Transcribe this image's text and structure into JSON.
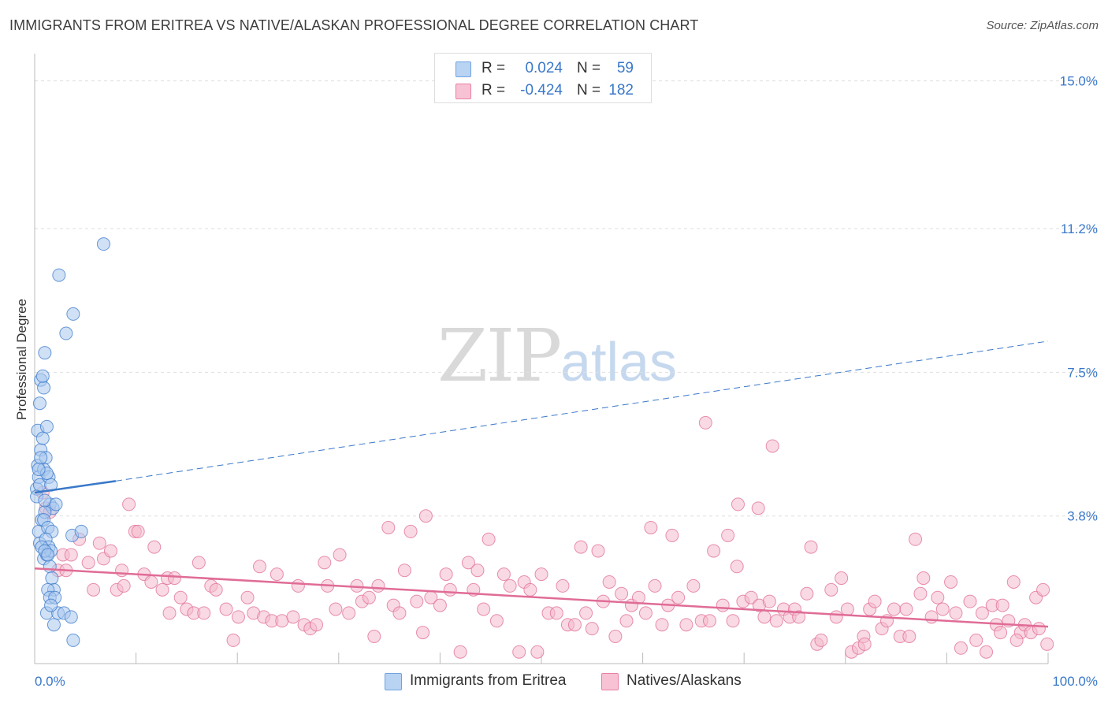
{
  "header": {
    "title": "IMMIGRANTS FROM ERITREA VS NATIVE/ALASKAN PROFESSIONAL DEGREE CORRELATION CHART",
    "source": "Source: ZipAtlas.com"
  },
  "watermark": {
    "zip": "ZIP",
    "atlas": "atlas"
  },
  "stats": [
    {
      "r_label": "R =",
      "r_value": "0.024",
      "n_label": "N =",
      "n_value": "59",
      "color": "#6fa3e0",
      "fill": "#b9d3f3"
    },
    {
      "r_label": "R =",
      "r_value": "-0.424",
      "n_label": "N =",
      "n_value": "182",
      "color": "#e87fa3",
      "fill": "#f7c3d4"
    }
  ],
  "legend": [
    {
      "label": "Immigrants from Eritrea",
      "fill": "#b9d3f3",
      "stroke": "#6fa3e0"
    },
    {
      "label": "Natives/Alaskans",
      "fill": "#f7c3d4",
      "stroke": "#e87fa3"
    }
  ],
  "colors": {
    "blue": "#3a78c9",
    "blue_fill": "#a9c8ef",
    "pink": "#e06c96",
    "pink_fill": "#f4b9cc",
    "grid": "#dedede",
    "tick_text": "#3a78c9"
  },
  "chart_data": {
    "type": "scatter",
    "title": "IMMIGRANTS FROM ERITREA VS NATIVE/ALASKAN PROFESSIONAL DEGREE CORRELATION CHART",
    "xlabel": "",
    "ylabel": "Professional Degree",
    "xlim": [
      0,
      100
    ],
    "ylim": [
      0,
      15.5
    ],
    "x_tick_labels": [
      "0.0%",
      "100.0%"
    ],
    "y_ticks": [
      3.8,
      7.5,
      11.2,
      15.0
    ],
    "y_tick_labels": [
      "3.8%",
      "7.5%",
      "11.2%",
      "15.0%"
    ],
    "series": [
      {
        "name": "Immigrants from Eritrea",
        "trend": {
          "x0": 0,
          "y0": 4.4,
          "x1": 8,
          "y1": 4.7,
          "dash_x1": 100,
          "dash_y1": 8.3
        },
        "points": [
          [
            0.2,
            4.5
          ],
          [
            0.3,
            5.1
          ],
          [
            0.4,
            4.8
          ],
          [
            0.5,
            4.6
          ],
          [
            0.2,
            4.3
          ],
          [
            0.6,
            5.5
          ],
          [
            0.4,
            3.4
          ],
          [
            0.5,
            3.1
          ],
          [
            0.7,
            3.7
          ],
          [
            0.3,
            6.0
          ],
          [
            0.5,
            6.7
          ],
          [
            0.6,
            7.3
          ],
          [
            0.9,
            7.1
          ],
          [
            1.0,
            8.0
          ],
          [
            0.8,
            5.8
          ],
          [
            1.2,
            6.1
          ],
          [
            1.1,
            5.3
          ],
          [
            0.9,
            5.0
          ],
          [
            1.4,
            4.8
          ],
          [
            1.6,
            4.6
          ],
          [
            1.2,
            4.9
          ],
          [
            1.5,
            4.1
          ],
          [
            1.8,
            4.0
          ],
          [
            1.0,
            3.9
          ],
          [
            0.9,
            3.7
          ],
          [
            1.3,
            3.5
          ],
          [
            1.7,
            3.4
          ],
          [
            1.1,
            3.2
          ],
          [
            1.4,
            3.0
          ],
          [
            0.9,
            2.7
          ],
          [
            1.2,
            2.8
          ],
          [
            1.6,
            2.9
          ],
          [
            1.5,
            2.5
          ],
          [
            1.7,
            2.2
          ],
          [
            1.9,
            1.9
          ],
          [
            1.3,
            1.9
          ],
          [
            1.5,
            1.7
          ],
          [
            2.0,
            1.7
          ],
          [
            1.2,
            1.3
          ],
          [
            1.9,
            1.0
          ],
          [
            2.3,
            1.3
          ],
          [
            2.9,
            1.3
          ],
          [
            3.6,
            1.2
          ],
          [
            3.7,
            3.3
          ],
          [
            4.6,
            3.4
          ],
          [
            3.8,
            9.0
          ],
          [
            2.4,
            10.0
          ],
          [
            6.8,
            10.8
          ],
          [
            3.1,
            8.5
          ],
          [
            0.8,
            7.4
          ],
          [
            0.6,
            5.3
          ],
          [
            0.4,
            5.0
          ],
          [
            1.0,
            4.2
          ],
          [
            2.1,
            4.1
          ],
          [
            0.7,
            3.0
          ],
          [
            1.0,
            2.9
          ],
          [
            1.3,
            2.8
          ],
          [
            1.6,
            1.5
          ],
          [
            3.8,
            0.6
          ]
        ]
      },
      {
        "name": "Natives/Alaskans",
        "trend": {
          "x0": 0,
          "y0": 2.45,
          "x1": 100,
          "y1": 0.95
        },
        "points": [
          [
            0.8,
            4.4
          ],
          [
            1.1,
            4.0
          ],
          [
            1.5,
            3.9
          ],
          [
            2.3,
            2.4
          ],
          [
            2.8,
            2.8
          ],
          [
            3.1,
            2.4
          ],
          [
            3.6,
            2.8
          ],
          [
            4.4,
            3.2
          ],
          [
            5.3,
            2.6
          ],
          [
            5.8,
            1.9
          ],
          [
            6.4,
            3.1
          ],
          [
            6.8,
            2.7
          ],
          [
            7.5,
            2.9
          ],
          [
            8.1,
            1.9
          ],
          [
            8.8,
            2.0
          ],
          [
            8.6,
            2.4
          ],
          [
            9.3,
            4.1
          ],
          [
            9.9,
            3.4
          ],
          [
            10.2,
            3.4
          ],
          [
            10.8,
            2.3
          ],
          [
            11.5,
            2.1
          ],
          [
            11.8,
            3.0
          ],
          [
            12.6,
            1.9
          ],
          [
            13.1,
            2.2
          ],
          [
            13.3,
            1.3
          ],
          [
            13.8,
            2.2
          ],
          [
            14.4,
            1.7
          ],
          [
            15.0,
            1.4
          ],
          [
            15.7,
            1.3
          ],
          [
            16.2,
            2.6
          ],
          [
            16.7,
            1.3
          ],
          [
            17.4,
            2.0
          ],
          [
            17.9,
            1.9
          ],
          [
            18.9,
            1.4
          ],
          [
            19.6,
            0.6
          ],
          [
            20.1,
            1.2
          ],
          [
            21.0,
            1.7
          ],
          [
            21.6,
            1.3
          ],
          [
            22.2,
            2.5
          ],
          [
            22.6,
            1.2
          ],
          [
            23.4,
            1.1
          ],
          [
            23.9,
            2.3
          ],
          [
            24.4,
            1.1
          ],
          [
            25.5,
            1.2
          ],
          [
            26.0,
            2.0
          ],
          [
            26.6,
            1.0
          ],
          [
            27.2,
            0.9
          ],
          [
            27.8,
            1.0
          ],
          [
            28.6,
            2.6
          ],
          [
            28.9,
            2.0
          ],
          [
            29.7,
            1.4
          ],
          [
            30.1,
            2.8
          ],
          [
            31.0,
            1.3
          ],
          [
            31.8,
            2.0
          ],
          [
            32.3,
            1.6
          ],
          [
            33.0,
            1.7
          ],
          [
            33.5,
            0.7
          ],
          [
            33.9,
            2.0
          ],
          [
            34.9,
            3.5
          ],
          [
            35.4,
            1.5
          ],
          [
            36.0,
            1.3
          ],
          [
            36.5,
            2.4
          ],
          [
            37.1,
            3.4
          ],
          [
            37.7,
            1.6
          ],
          [
            38.3,
            0.8
          ],
          [
            38.6,
            3.8
          ],
          [
            39.1,
            1.7
          ],
          [
            40.0,
            1.5
          ],
          [
            40.6,
            2.3
          ],
          [
            41.0,
            1.9
          ],
          [
            42.0,
            0.3
          ],
          [
            42.8,
            2.6
          ],
          [
            43.3,
            1.9
          ],
          [
            43.7,
            2.4
          ],
          [
            44.3,
            1.4
          ],
          [
            44.8,
            3.2
          ],
          [
            45.6,
            1.1
          ],
          [
            46.3,
            2.3
          ],
          [
            46.9,
            2.0
          ],
          [
            47.8,
            0.3
          ],
          [
            48.3,
            2.1
          ],
          [
            48.9,
            1.9
          ],
          [
            49.6,
            0.3
          ],
          [
            50.0,
            2.3
          ],
          [
            50.7,
            1.3
          ],
          [
            51.5,
            1.3
          ],
          [
            52.1,
            2.0
          ],
          [
            52.6,
            1.0
          ],
          [
            53.3,
            1.0
          ],
          [
            53.9,
            3.0
          ],
          [
            54.4,
            1.3
          ],
          [
            55.0,
            0.9
          ],
          [
            55.6,
            2.9
          ],
          [
            56.1,
            1.6
          ],
          [
            56.7,
            2.1
          ],
          [
            57.3,
            0.7
          ],
          [
            57.9,
            1.8
          ],
          [
            58.4,
            1.1
          ],
          [
            58.9,
            1.5
          ],
          [
            59.6,
            1.7
          ],
          [
            60.3,
            1.3
          ],
          [
            60.8,
            3.5
          ],
          [
            61.2,
            2.0
          ],
          [
            61.9,
            1.0
          ],
          [
            62.5,
            1.5
          ],
          [
            62.9,
            3.3
          ],
          [
            63.5,
            1.7
          ],
          [
            64.3,
            1.0
          ],
          [
            65.0,
            2.0
          ],
          [
            65.8,
            1.1
          ],
          [
            66.6,
            1.1
          ],
          [
            67.0,
            2.9
          ],
          [
            67.9,
            1.5
          ],
          [
            68.4,
            3.3
          ],
          [
            68.9,
            1.1
          ],
          [
            69.3,
            2.5
          ],
          [
            69.9,
            1.6
          ],
          [
            70.7,
            1.7
          ],
          [
            71.5,
            1.5
          ],
          [
            72.0,
            1.2
          ],
          [
            72.5,
            1.6
          ],
          [
            73.2,
            1.1
          ],
          [
            73.9,
            1.4
          ],
          [
            74.5,
            1.2
          ],
          [
            75.0,
            1.4
          ],
          [
            75.4,
            1.2
          ],
          [
            76.2,
            1.8
          ],
          [
            76.6,
            3.0
          ],
          [
            77.2,
            0.5
          ],
          [
            77.6,
            0.6
          ],
          [
            78.6,
            1.9
          ],
          [
            79.1,
            1.2
          ],
          [
            79.6,
            2.2
          ],
          [
            80.2,
            1.4
          ],
          [
            80.6,
            0.3
          ],
          [
            81.3,
            0.4
          ],
          [
            81.8,
            0.7
          ],
          [
            82.4,
            1.4
          ],
          [
            82.9,
            1.6
          ],
          [
            83.6,
            0.9
          ],
          [
            84.1,
            1.1
          ],
          [
            84.8,
            1.4
          ],
          [
            85.4,
            0.7
          ],
          [
            86.0,
            1.4
          ],
          [
            86.3,
            0.7
          ],
          [
            86.9,
            3.2
          ],
          [
            87.4,
            1.8
          ],
          [
            87.7,
            2.2
          ],
          [
            88.5,
            1.2
          ],
          [
            89.1,
            1.7
          ],
          [
            89.6,
            1.4
          ],
          [
            90.4,
            2.1
          ],
          [
            90.9,
            1.3
          ],
          [
            91.4,
            0.4
          ],
          [
            92.3,
            1.6
          ],
          [
            92.9,
            0.6
          ],
          [
            93.5,
            1.3
          ],
          [
            93.9,
            0.3
          ],
          [
            94.5,
            1.5
          ],
          [
            94.9,
            1.0
          ],
          [
            95.5,
            1.5
          ],
          [
            96.1,
            1.1
          ],
          [
            96.6,
            2.1
          ],
          [
            97.3,
            0.8
          ],
          [
            97.7,
            1.0
          ],
          [
            98.3,
            0.8
          ],
          [
            98.8,
            1.7
          ],
          [
            99.1,
            0.9
          ],
          [
            99.5,
            1.9
          ],
          [
            99.9,
            0.5
          ],
          [
            66.2,
            6.2
          ],
          [
            72.8,
            5.6
          ],
          [
            69.4,
            4.1
          ],
          [
            71.4,
            4.0
          ],
          [
            81.9,
            0.5
          ],
          [
            95.3,
            0.8
          ],
          [
            96.9,
            0.6
          ]
        ]
      }
    ]
  }
}
